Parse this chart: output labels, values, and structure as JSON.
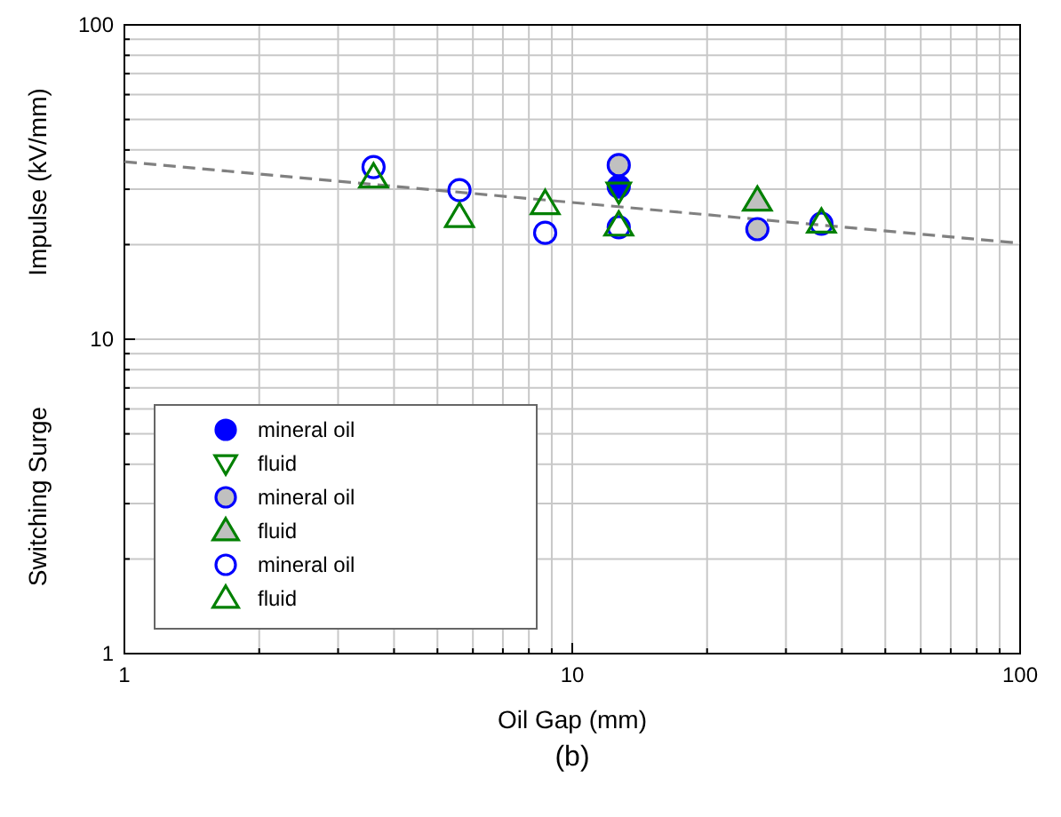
{
  "chart_data": {
    "type": "scatter",
    "xlabel": "Oil Gap (mm)",
    "ylabel": "Impulse (kV/mm)",
    "log": "xy",
    "grid": true,
    "legend": "bottom left",
    "xlim": [
      1,
      100
    ],
    "ylim": [
      1,
      100
    ],
    "xticks": [
      1,
      {
        "value": 2,
        "label": null
      },
      {
        "value": 3,
        "label": null
      },
      {
        "value": 4,
        "label": null
      },
      {
        "value": 5,
        "label": null
      },
      {
        "value": 6,
        "label": null
      },
      {
        "value": 7,
        "label": null
      },
      {
        "value": 8,
        "label": null
      },
      {
        "value": 9,
        "label": null
      },
      10,
      {
        "value": 20,
        "label": null
      },
      {
        "value": 30,
        "label": null
      },
      {
        "value": 40,
        "label": null
      },
      {
        "value": 50,
        "label": null
      },
      {
        "value": 60,
        "label": null
      },
      {
        "value": 70,
        "label": null
      },
      {
        "value": 80,
        "label": null
      },
      {
        "value": 90,
        "label": null
      },
      100
    ],
    "yticks": [
      1,
      {
        "value": 2,
        "label": null
      },
      {
        "value": 3,
        "label": null
      },
      {
        "value": 4,
        "label": null
      },
      {
        "value": 5,
        "label": null
      },
      {
        "value": 6,
        "label": null
      },
      {
        "value": 7,
        "label": null
      },
      {
        "value": 8,
        "label": null
      },
      {
        "value": 9,
        "label": null
      },
      10,
      {
        "value": 20,
        "label": null
      },
      {
        "value": 30,
        "label": null
      },
      {
        "value": 40,
        "label": null
      },
      {
        "value": 50,
        "label": null
      },
      {
        "value": 60,
        "label": null
      },
      {
        "value": 70,
        "label": null
      },
      {
        "value": 80,
        "label": null
      },
      {
        "value": 90,
        "label": null
      },
      100
    ],
    "series": [
      {
        "type": "line",
        "x": [
          1,
          100
        ],
        "values": [
          36.7,
          20.2
        ],
        "color": "#808080",
        "line_style": "dashed"
      },
      {
        "name": "mineral oil",
        "x": [
          12.7
        ],
        "values": [
          30.6
        ],
        "color": "#0000ff",
        "colors": [
          "#0000ff"
        ],
        "marker": "circle"
      },
      {
        "name": "fluid",
        "x": [
          12.7
        ],
        "values": [
          29.5
        ],
        "color": "#008000",
        "marker": "triangle-down"
      },
      {
        "name": "mineral oil",
        "x": [
          12.7,
          25.9
        ],
        "values": [
          35.8,
          22.4
        ],
        "color": "#0000ff",
        "colors": [
          "#c0c0c0",
          "#c0c0c0"
        ],
        "marker": "circle"
      },
      {
        "name": "fluid",
        "x": [
          25.9
        ],
        "values": [
          27.6
        ],
        "color": "#008000",
        "colors": [
          "#c0c0c0"
        ],
        "marker": "triangle"
      },
      {
        "name": "mineral oil",
        "x": [
          3.6,
          5.6,
          8.7,
          12.7,
          36
        ],
        "values": [
          35.3,
          29.8,
          21.8,
          22.7,
          23.3
        ],
        "color": "#0000ff",
        "marker": "circle"
      },
      {
        "name": "fluid",
        "x": [
          3.6,
          5.6,
          8.7,
          12.7,
          36
        ],
        "values": [
          32.7,
          24.5,
          26.9,
          23,
          23.5
        ],
        "color": "#008000",
        "marker": "triangle"
      }
    ],
    "annotations": [
      "Switching Surge",
      "(b)"
    ]
  }
}
